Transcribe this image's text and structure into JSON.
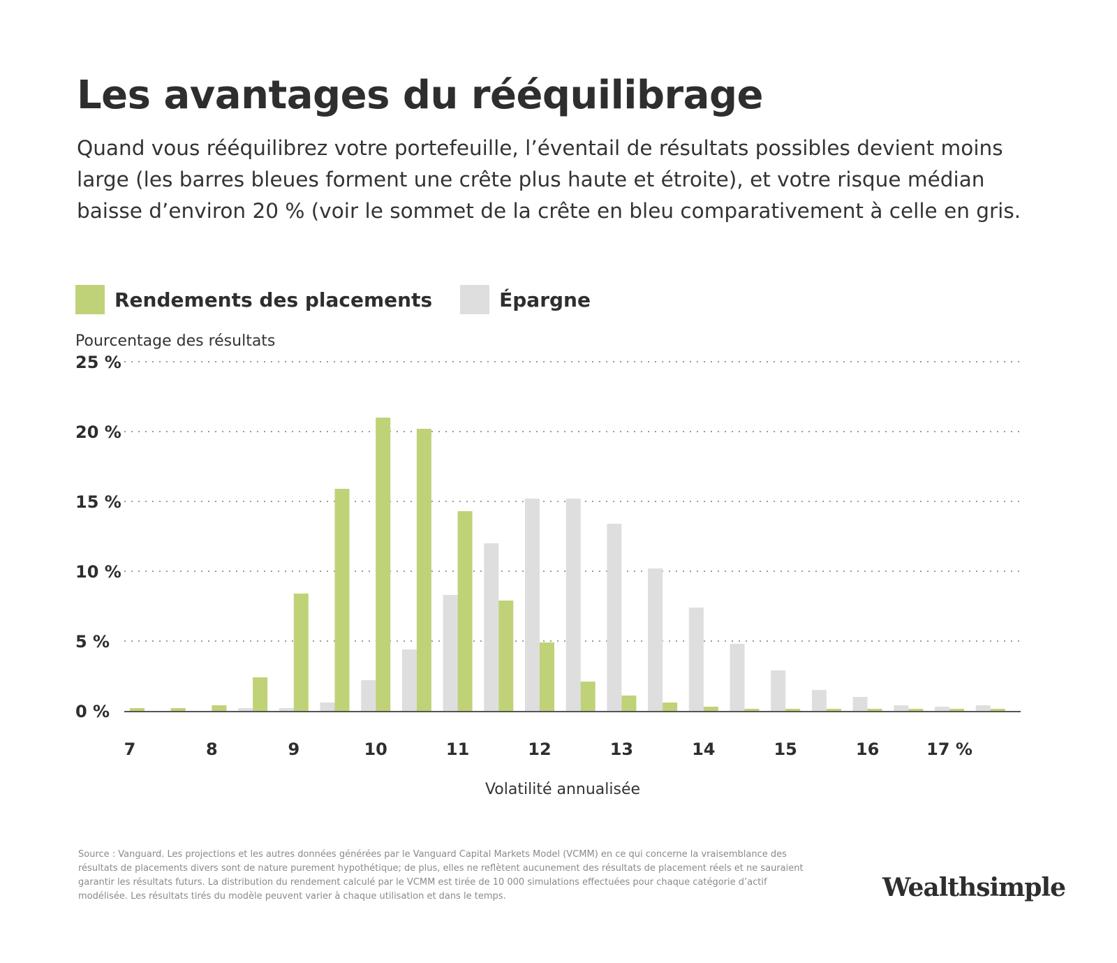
{
  "header": {
    "title": "Les avantages du rééquilibrage",
    "subtitle": "Quand vous rééquilibrez votre portefeuille, l’éventail de résultats possibles devient moins large (les barres bleues forment une crête plus haute et étroite), et votre risque médian baisse d’environ 20 % (voir le sommet de la crête en bleu comparativement à celle en gris."
  },
  "legend": [
    {
      "label": "Rendements des placements",
      "color": "#bfd277"
    },
    {
      "label": "Épargne",
      "color": "#dedede"
    }
  ],
  "chart_data": {
    "type": "bar",
    "ylabel": "Pourcentage des résultats",
    "xlabel": "Volatilité annualisée",
    "ylim": [
      0,
      25
    ],
    "y_ticks": [
      "0 %",
      "5 %",
      "10 %",
      "15 %",
      "20 %",
      "25 %"
    ],
    "x_ticks": [
      "7",
      "8",
      "9",
      "10",
      "11",
      "12",
      "13",
      "14",
      "15",
      "16",
      "17 %"
    ],
    "grid": "dotted horizontal",
    "x": [
      7.0,
      7.5,
      8.0,
      8.5,
      9.0,
      9.5,
      10.0,
      10.5,
      11.0,
      11.5,
      12.0,
      12.5,
      13.0,
      13.5,
      14.0,
      14.5,
      15.0,
      15.5,
      16.0,
      16.5,
      17.0,
      17.5
    ],
    "series": [
      {
        "name": "Épargne",
        "color": "#dedede",
        "values": [
          0,
          0,
          0,
          0.2,
          0.2,
          0.6,
          2.2,
          4.4,
          8.3,
          12.0,
          15.2,
          15.2,
          13.4,
          10.2,
          7.4,
          4.8,
          2.9,
          1.5,
          1.0,
          0.4,
          0.3,
          0.4
        ]
      },
      {
        "name": "Rendements des placements",
        "color": "#bfd277",
        "values": [
          0.2,
          0.2,
          0.4,
          2.4,
          8.4,
          15.9,
          21.0,
          20.2,
          14.3,
          7.9,
          4.9,
          2.1,
          1.1,
          0.6,
          0.3,
          0.15,
          0.15,
          0.15,
          0.15,
          0.15,
          0.15,
          0.15
        ]
      }
    ]
  },
  "footer": {
    "source": "Source : Vanguard. Les projections et les autres données générées par le Vanguard Capital Markets Model (VCMM) en ce qui concerne la vraisemblance des résultats de placements divers sont de nature purement hypothétique; de plus, elles ne reflètent aucunement des résultats de placement réels et ne sauraient garantir les résultats futurs. La distribution du rendement calculé par le VCMM est tirée de 10 000 simulations effectuées pour chaque catégorie d’actif modélisée. Les résultats tirés du modèle peuvent varier à chaque utilisation et dans le temps.",
    "logo": "Wealthsimple"
  }
}
